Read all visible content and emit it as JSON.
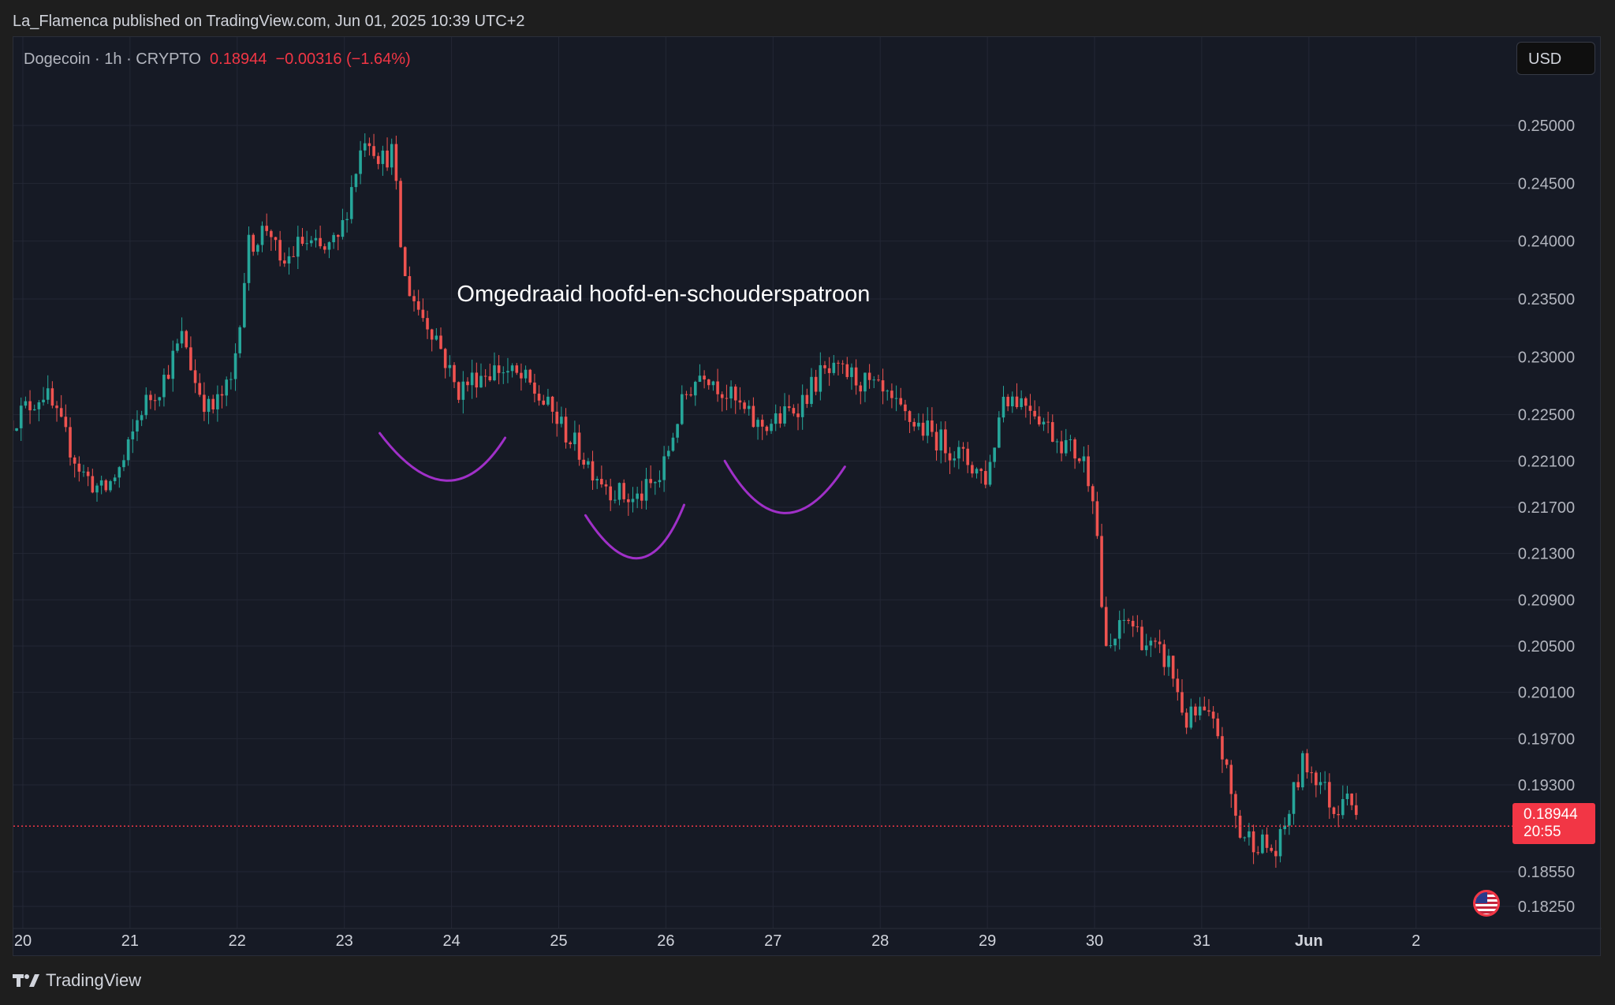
{
  "publisher_line": "La_Flamenca published on TradingView.com, Jun 01, 2025 10:39 UTC+2",
  "legend": {
    "symbol": "Dogecoin · 1h · CRYPTO",
    "price": "0.18944",
    "change": "−0.00316 (−1.64%)"
  },
  "currency_button": "USD",
  "price_badge": {
    "price": "0.18944",
    "countdown": "20:55"
  },
  "footer": {
    "brand": "TradingView"
  },
  "colors": {
    "up": "#26a69a",
    "down": "#ef5350",
    "annotation": "#a030c8",
    "background": "#161a25",
    "grid": "#232735"
  },
  "chart_data": {
    "type": "candlestick",
    "title": "Dogecoin · 1h · CRYPTO",
    "annotation": "Omgedraaid hoofd-en-schouderspatroon",
    "x_ticks": [
      {
        "label": "20",
        "day": 20
      },
      {
        "label": "21",
        "day": 21
      },
      {
        "label": "22",
        "day": 22
      },
      {
        "label": "23",
        "day": 23
      },
      {
        "label": "24",
        "day": 24
      },
      {
        "label": "25",
        "day": 25
      },
      {
        "label": "26",
        "day": 26
      },
      {
        "label": "27",
        "day": 27
      },
      {
        "label": "28",
        "day": 28
      },
      {
        "label": "29",
        "day": 29
      },
      {
        "label": "30",
        "day": 30
      },
      {
        "label": "31",
        "day": 31
      },
      {
        "label": "Jun",
        "day": 32,
        "bold": true
      },
      {
        "label": "2",
        "day": 33
      }
    ],
    "y_ticks": [
      "0.18250",
      "0.18550",
      "0.19300",
      "0.19700",
      "0.20100",
      "0.20500",
      "0.20900",
      "0.21300",
      "0.21700",
      "0.22100",
      "0.22500",
      "0.23000",
      "0.23500",
      "0.24000",
      "0.24500",
      "0.25000"
    ],
    "last_price": 0.18944,
    "path": [
      [
        19.9,
        0.2245
      ],
      [
        20.2,
        0.227
      ],
      [
        20.4,
        0.223
      ],
      [
        20.55,
        0.22
      ],
      [
        20.75,
        0.2182
      ],
      [
        20.95,
        0.221
      ],
      [
        21.1,
        0.2255
      ],
      [
        21.3,
        0.2278
      ],
      [
        21.5,
        0.232
      ],
      [
        21.6,
        0.228
      ],
      [
        21.75,
        0.2252
      ],
      [
        21.95,
        0.2278
      ],
      [
        22.1,
        0.2395
      ],
      [
        22.3,
        0.2415
      ],
      [
        22.4,
        0.2375
      ],
      [
        22.6,
        0.24
      ],
      [
        22.8,
        0.239
      ],
      [
        22.95,
        0.24
      ],
      [
        23.1,
        0.246
      ],
      [
        23.2,
        0.2495
      ],
      [
        23.35,
        0.247
      ],
      [
        23.45,
        0.2478
      ],
      [
        23.55,
        0.237
      ],
      [
        23.7,
        0.234
      ],
      [
        23.85,
        0.232
      ],
      [
        24.05,
        0.227
      ],
      [
        24.25,
        0.2285
      ],
      [
        24.45,
        0.229
      ],
      [
        24.7,
        0.2278
      ],
      [
        24.95,
        0.225
      ],
      [
        25.1,
        0.223
      ],
      [
        25.3,
        0.2205
      ],
      [
        25.5,
        0.2185
      ],
      [
        25.7,
        0.2175
      ],
      [
        25.95,
        0.2195
      ],
      [
        26.1,
        0.2245
      ],
      [
        26.2,
        0.227
      ],
      [
        26.35,
        0.229
      ],
      [
        26.6,
        0.2265
      ],
      [
        26.85,
        0.224
      ],
      [
        27.05,
        0.2245
      ],
      [
        27.25,
        0.226
      ],
      [
        27.45,
        0.2285
      ],
      [
        27.7,
        0.2285
      ],
      [
        27.95,
        0.2272
      ],
      [
        28.2,
        0.225
      ],
      [
        28.45,
        0.2235
      ],
      [
        28.7,
        0.2218
      ],
      [
        29.0,
        0.2195
      ],
      [
        29.15,
        0.2268
      ],
      [
        29.4,
        0.226
      ],
      [
        29.6,
        0.2235
      ],
      [
        29.9,
        0.221
      ],
      [
        30.0,
        0.218
      ],
      [
        30.1,
        0.204
      ],
      [
        30.3,
        0.2075
      ],
      [
        30.5,
        0.205
      ],
      [
        30.7,
        0.2035
      ],
      [
        30.85,
        0.1985
      ],
      [
        31.0,
        0.1992
      ],
      [
        31.15,
        0.1975
      ],
      [
        31.35,
        0.1888
      ],
      [
        31.55,
        0.188
      ],
      [
        31.7,
        0.187
      ],
      [
        31.85,
        0.192
      ],
      [
        31.95,
        0.195
      ],
      [
        32.1,
        0.1935
      ],
      [
        32.25,
        0.1905
      ],
      [
        32.35,
        0.1935
      ],
      [
        32.45,
        0.1895
      ]
    ],
    "shoulder_curves": [
      {
        "points": [
          [
            23.33,
            0.2234
          ],
          [
            23.95,
            0.2193
          ],
          [
            24.5,
            0.223
          ]
        ]
      },
      {
        "points": [
          [
            25.25,
            0.2163
          ],
          [
            25.75,
            0.2126
          ],
          [
            26.17,
            0.2172
          ]
        ]
      },
      {
        "points": [
          [
            26.55,
            0.221
          ],
          [
            27.1,
            0.2165
          ],
          [
            27.67,
            0.2205
          ]
        ]
      }
    ]
  }
}
